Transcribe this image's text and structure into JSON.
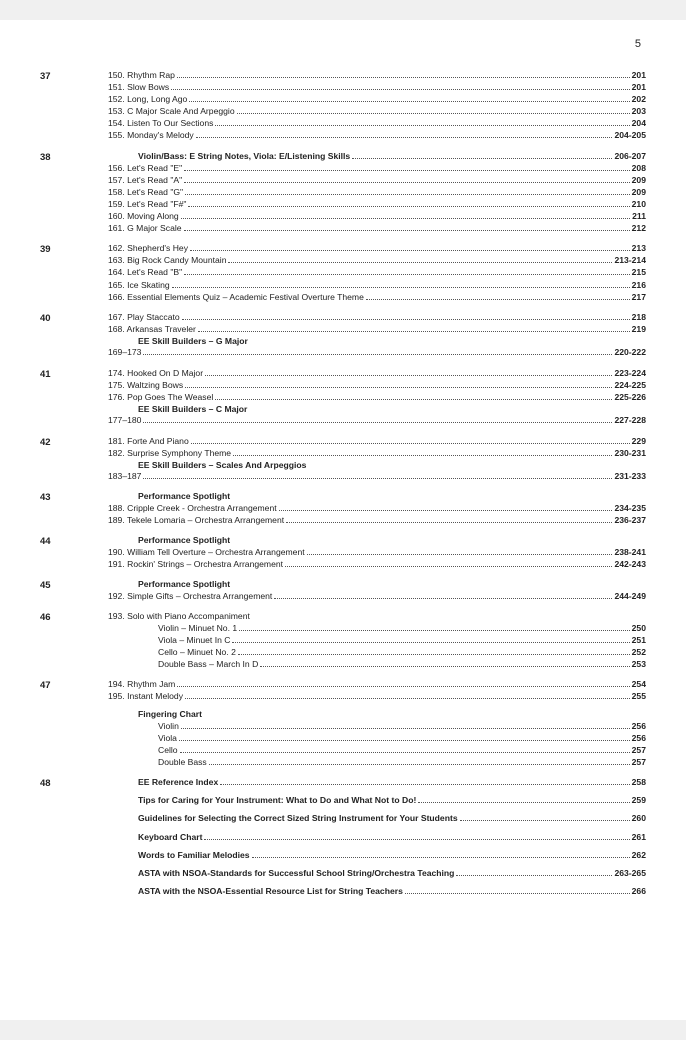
{
  "pageNumber": "5",
  "sections": [
    {
      "num": "37",
      "items": [
        {
          "label": "150. Rhythm Rap",
          "page": "201"
        },
        {
          "label": "151. Slow Bows",
          "page": "201"
        },
        {
          "label": "152. Long, Long Ago",
          "page": "202"
        },
        {
          "label": "153. C Major Scale And Arpeggio",
          "page": "203"
        },
        {
          "label": "154. Listen To Our Sections",
          "page": "204"
        },
        {
          "label": "155. Monday's Melody",
          "page": "204-205"
        }
      ]
    },
    {
      "num": "38",
      "items": [
        {
          "label": "Violin/Bass: E String Notes, Viola: E/Listening Skills",
          "page": "206-207",
          "bold": true,
          "indent": 1
        },
        {
          "label": "156. Let's Read \"E\"",
          "page": "208"
        },
        {
          "label": "157. Let's Read \"A\"",
          "page": "209"
        },
        {
          "label": "158. Let's Read \"G\"",
          "page": "209"
        },
        {
          "label": "159. Let's Read \"F#\"",
          "page": "210"
        },
        {
          "label": "160. Moving Along",
          "page": "211"
        },
        {
          "label": "161. G Major Scale",
          "page": "212"
        }
      ]
    },
    {
      "num": "39",
      "items": [
        {
          "label": "162. Shepherd's Hey",
          "page": "213"
        },
        {
          "label": "163. Big Rock Candy Mountain",
          "page": "213-214"
        },
        {
          "label": "164. Let's Read \"B\"",
          "page": "215"
        },
        {
          "label": "165. Ice Skating",
          "page": "216"
        },
        {
          "label": "166. Essential Elements Quiz – Academic Festival Overture Theme",
          "page": "217"
        }
      ]
    },
    {
      "num": "40",
      "items": [
        {
          "label": "167. Play Staccato",
          "page": "218"
        },
        {
          "label": "168. Arkansas Traveler",
          "page": "219"
        },
        {
          "label": "EE Skill Builders – G Major",
          "subhead": true,
          "indent": 1
        },
        {
          "label": "169–173",
          "page": "220-222"
        }
      ]
    },
    {
      "num": "41",
      "items": [
        {
          "label": "174. Hooked On D Major",
          "page": "223-224"
        },
        {
          "label": "175. Waltzing Bows",
          "page": "224-225"
        },
        {
          "label": "176. Pop Goes The Weasel",
          "page": "225-226"
        },
        {
          "label": "EE Skill Builders – C Major",
          "subhead": true,
          "indent": 1
        },
        {
          "label": "177–180",
          "page": "227-228"
        }
      ]
    },
    {
      "num": "42",
      "items": [
        {
          "label": "181. Forte And Piano",
          "page": "229"
        },
        {
          "label": "182. Surprise Symphony Theme",
          "page": "230-231"
        },
        {
          "label": "EE Skill Builders – Scales And Arpeggios",
          "subhead": true,
          "indent": 1
        },
        {
          "label": "183–187",
          "page": "231-233"
        }
      ]
    },
    {
      "num": "43",
      "items": [
        {
          "label": "Performance Spotlight",
          "subhead": true,
          "indent": 1
        },
        {
          "label": "188. Cripple Creek - Orchestra Arrangement",
          "page": "234-235"
        },
        {
          "label": "189. Tekele Lomaria – Orchestra Arrangement",
          "page": "236-237"
        }
      ]
    },
    {
      "num": "44",
      "items": [
        {
          "label": "Performance Spotlight",
          "subhead": true,
          "indent": 1
        },
        {
          "label": "190. William Tell Overture – Orchestra Arrangement",
          "page": "238-241"
        },
        {
          "label": "191. Rockin' Strings – Orchestra Arrangement",
          "page": "242-243"
        }
      ]
    },
    {
      "num": "45",
      "items": [
        {
          "label": "Performance Spotlight",
          "subhead": true,
          "indent": 1
        },
        {
          "label": "192. Simple Gifts – Orchestra Arrangement",
          "page": "244-249"
        }
      ]
    },
    {
      "num": "46",
      "items": [
        {
          "label": "193. Solo with Piano Accompaniment",
          "nopage": true
        },
        {
          "label": "Violin – Minuet No. 1",
          "page": "250",
          "indent": 2
        },
        {
          "label": "Viola – Minuet In C",
          "page": "251",
          "indent": 2
        },
        {
          "label": "Cello – Minuet No. 2",
          "page": "252",
          "indent": 2
        },
        {
          "label": "Double Bass – March In D",
          "page": "253",
          "indent": 2
        }
      ]
    },
    {
      "num": "47",
      "items": [
        {
          "label": "194. Rhythm Jam",
          "page": "254"
        },
        {
          "label": "195. Instant Melody",
          "page": "255"
        },
        {
          "gap": true
        },
        {
          "label": "Fingering Chart",
          "subhead": true,
          "indent": 1
        },
        {
          "label": "Violin",
          "page": "256",
          "indent": 2
        },
        {
          "label": "Viola",
          "page": "256",
          "indent": 2
        },
        {
          "label": "Cello",
          "page": "257",
          "indent": 2
        },
        {
          "label": "Double Bass",
          "page": "257",
          "indent": 2
        }
      ]
    },
    {
      "num": "48",
      "spaced": true,
      "items": [
        {
          "label": "EE Reference Index",
          "page": "258",
          "bold": true,
          "indent": 1
        },
        {
          "gap": true
        },
        {
          "label": "Tips for Caring for Your Instrument: What to Do and What Not to Do!",
          "page": "259",
          "bold": true,
          "indent": 1
        },
        {
          "gap": true
        },
        {
          "label": "Guidelines for Selecting the Correct Sized String Instrument for Your Students",
          "page": "260",
          "bold": true,
          "indent": 1
        },
        {
          "gap": true
        },
        {
          "label": "Keyboard Chart",
          "page": "261",
          "bold": true,
          "indent": 1
        },
        {
          "gap": true
        },
        {
          "label": "Words to Familiar Melodies",
          "page": "262",
          "bold": true,
          "indent": 1
        },
        {
          "gap": true
        },
        {
          "label": "ASTA with NSOA-Standards for Successful School String/Orchestra Teaching",
          "page": "263-265",
          "bold": true,
          "indent": 1
        },
        {
          "gap": true
        },
        {
          "label": "ASTA with the NSOA-Essential Resource List for String Teachers",
          "page": "266",
          "bold": true,
          "indent": 1
        }
      ]
    }
  ]
}
